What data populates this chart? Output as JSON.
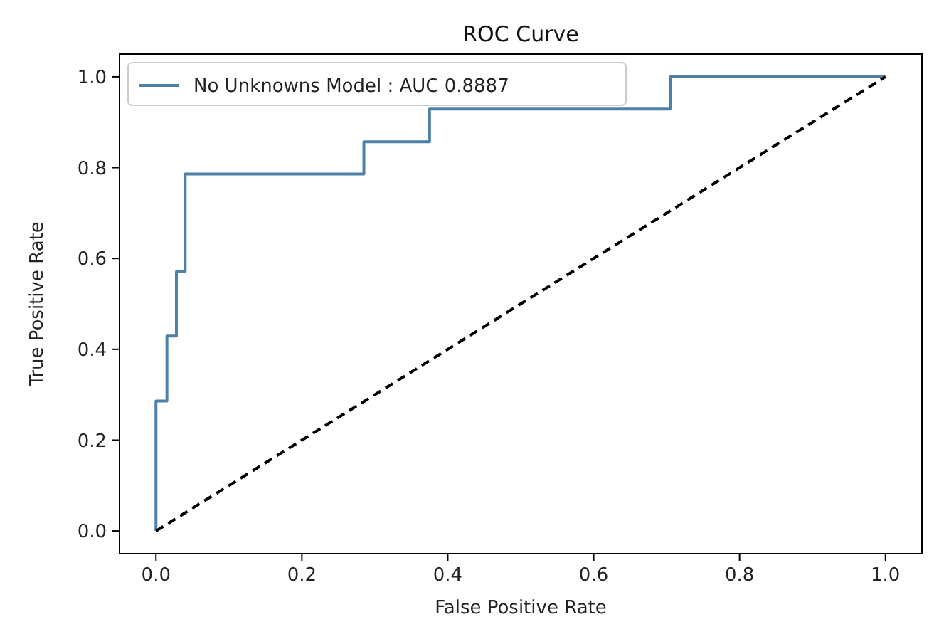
{
  "chart_data": {
    "type": "line",
    "title": "ROC Curve",
    "xlabel": "False Positive Rate",
    "ylabel": "True Positive Rate",
    "xlim": [
      -0.05,
      1.05
    ],
    "ylim": [
      -0.05,
      1.05
    ],
    "xticks": [
      {
        "value": 0,
        "label": "0.0"
      },
      {
        "value": 0.2,
        "label": "0.2"
      },
      {
        "value": 0.4,
        "label": "0.4"
      },
      {
        "value": 0.6,
        "label": "0.6"
      },
      {
        "value": 0.8,
        "label": "0.8"
      },
      {
        "value": 1,
        "label": "1.0"
      }
    ],
    "yticks": [
      {
        "value": 0,
        "label": "0.0"
      },
      {
        "value": 0.2,
        "label": "0.2"
      },
      {
        "value": 0.4,
        "label": "0.4"
      },
      {
        "value": 0.6,
        "label": "0.6"
      },
      {
        "value": 0.8,
        "label": "0.8"
      },
      {
        "value": 1,
        "label": "1.0"
      }
    ],
    "legend": "top left",
    "series": [
      {
        "name": "No Unknowns Model : AUC 0.8887",
        "color": "#4f81a8",
        "line_style": "solid",
        "x": [
          0,
          0,
          0.015,
          0.015,
          0.028,
          0.028,
          0.04,
          0.04,
          0.285,
          0.285,
          0.375,
          0.375,
          0.705,
          0.705,
          1
        ],
        "values": [
          0,
          0.286,
          0.286,
          0.429,
          0.429,
          0.571,
          0.571,
          0.786,
          0.786,
          0.857,
          0.857,
          0.929,
          0.929,
          1,
          1
        ]
      },
      {
        "color": "#000000",
        "line_style": "dashed",
        "x": [
          0,
          1
        ],
        "values": [
          0,
          1
        ]
      }
    ]
  }
}
